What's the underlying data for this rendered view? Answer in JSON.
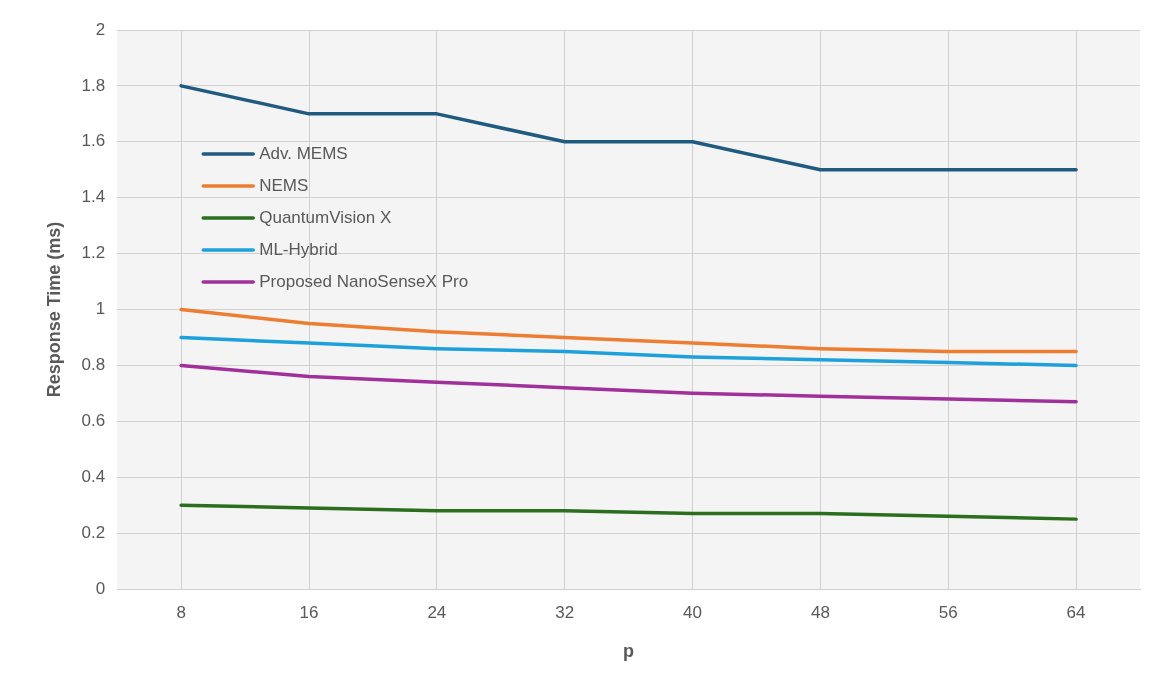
{
  "chart_data": {
    "type": "line",
    "xlabel": "p",
    "ylabel": "Response Time (ms)",
    "categories": [
      "8",
      "16",
      "24",
      "32",
      "40",
      "48",
      "56",
      "64"
    ],
    "series": [
      {
        "name": "Adv. MEMS",
        "color": "#1f5a80",
        "values": [
          1.8,
          1.7,
          1.7,
          1.6,
          1.6,
          1.5,
          1.5,
          1.5
        ]
      },
      {
        "name": "NEMS",
        "color": "#ed7d31",
        "values": [
          1.0,
          0.95,
          0.92,
          0.9,
          0.88,
          0.86,
          0.85,
          0.85
        ]
      },
      {
        "name": "QuantumVision X",
        "color": "#2a6e1e",
        "values": [
          0.3,
          0.29,
          0.28,
          0.28,
          0.27,
          0.27,
          0.26,
          0.25
        ]
      },
      {
        "name": "ML-Hybrid",
        "color": "#1ea0dc",
        "values": [
          0.9,
          0.88,
          0.86,
          0.85,
          0.83,
          0.82,
          0.81,
          0.8
        ]
      },
      {
        "name": "Proposed NanoSenseX Pro",
        "color": "#a0309a",
        "values": [
          0.8,
          0.76,
          0.74,
          0.72,
          0.7,
          0.69,
          0.68,
          0.67
        ]
      }
    ],
    "ylim": [
      0,
      2
    ],
    "yticks": [
      0,
      0.2,
      0.4,
      0.6,
      0.8,
      1,
      1.2,
      1.4,
      1.6,
      1.8,
      2
    ],
    "grid": true,
    "legend": "top left",
    "marker": "none",
    "line_style": "solid"
  }
}
